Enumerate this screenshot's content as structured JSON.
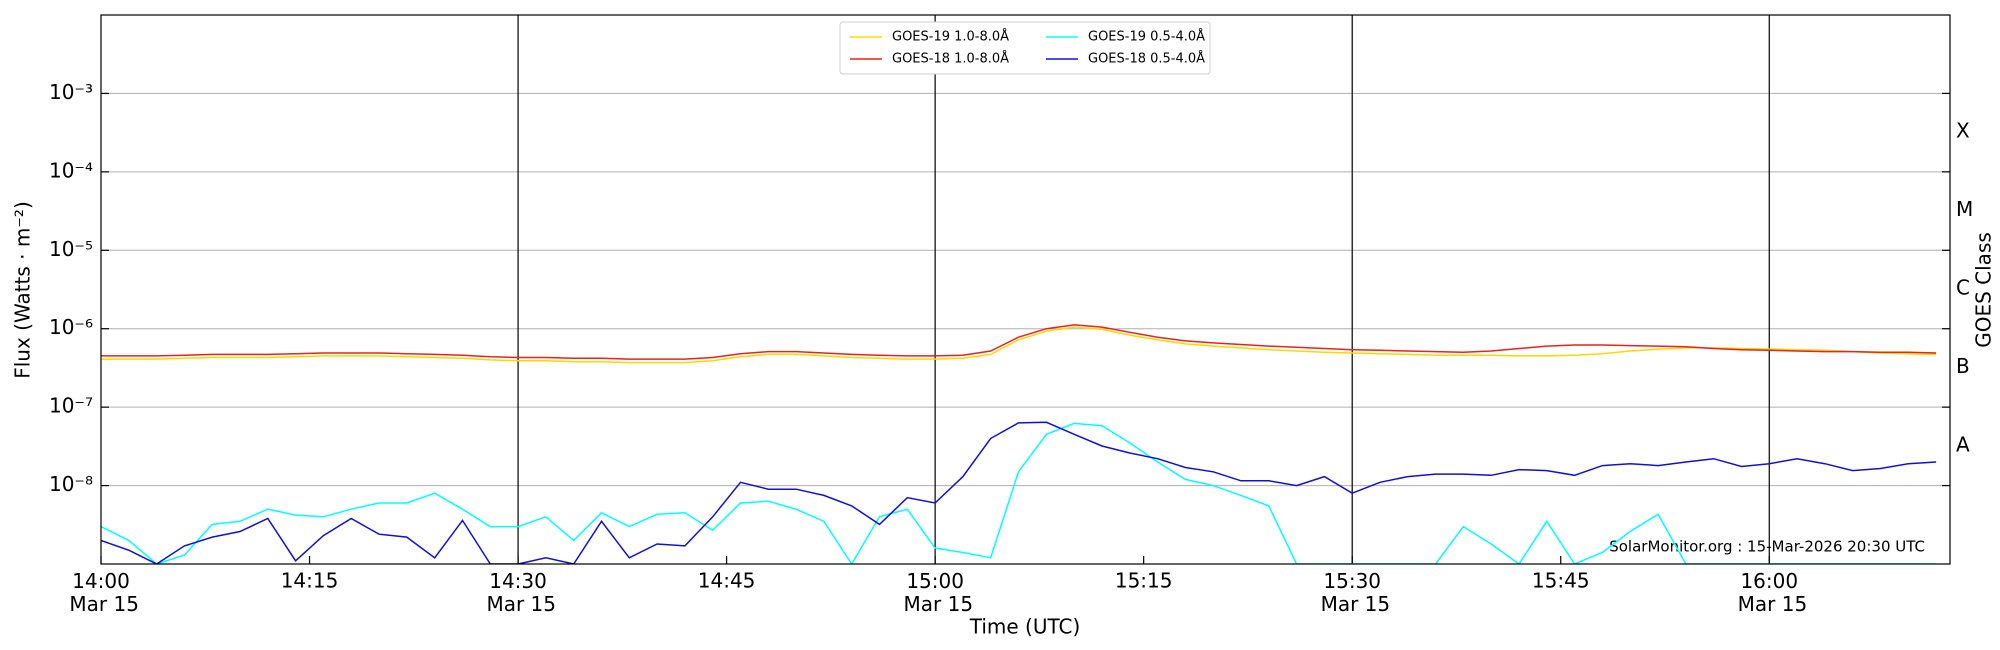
{
  "chart_data": {
    "type": "line",
    "xlabel": "Time (UTC)",
    "ylabel": "Flux (Watts · m⁻²)",
    "y2label": "GOES Class",
    "annotation": "SolarMonitor.org : 15-Mar-2026 20:30 UTC",
    "log_y": true,
    "grid": true,
    "legend": "upper center",
    "legend_columns": 2,
    "xlim": [
      "14:00",
      "16:13"
    ],
    "xticks": [
      {
        "value": "14:00",
        "label": "14:00\nMar 15"
      },
      {
        "value": "14:15",
        "label": "14:15"
      },
      {
        "value": "14:30",
        "label": "14:30\nMar 15"
      },
      {
        "value": "14:45",
        "label": "14:45"
      },
      {
        "value": "15:00",
        "label": "15:00\nMar 15"
      },
      {
        "value": "15:15",
        "label": "15:15"
      },
      {
        "value": "15:30",
        "label": "15:30\nMar 15"
      },
      {
        "value": "15:45",
        "label": "15:45"
      },
      {
        "value": "16:00",
        "label": "16:00\nMar 15"
      }
    ],
    "ylim": [
      1e-09,
      0.01
    ],
    "yticks": [
      {
        "value": 1e-08,
        "label": "10⁻⁸"
      },
      {
        "value": 1e-07,
        "label": "10⁻⁷"
      },
      {
        "value": 1e-06,
        "label": "10⁻⁶"
      },
      {
        "value": 1e-05,
        "label": "10⁻⁵"
      },
      {
        "value": 0.0001,
        "label": "10⁻⁴"
      },
      {
        "value": 0.001,
        "label": "10⁻³"
      }
    ],
    "y2lim": [
      1e-09,
      0.01
    ],
    "y2ticks": [
      {
        "value": 3.2e-08,
        "label": "A"
      },
      {
        "value": 3.2e-07,
        "label": "B"
      },
      {
        "value": 3.2e-06,
        "label": "C"
      },
      {
        "value": 3.2e-05,
        "label": "M"
      },
      {
        "value": 0.00032,
        "label": "X"
      }
    ],
    "x": [
      "14:00",
      "14:02",
      "14:04",
      "14:06",
      "14:08",
      "14:10",
      "14:12",
      "14:14",
      "14:16",
      "14:18",
      "14:20",
      "14:22",
      "14:24",
      "14:26",
      "14:28",
      "14:30",
      "14:32",
      "14:34",
      "14:36",
      "14:38",
      "14:40",
      "14:42",
      "14:44",
      "14:46",
      "14:48",
      "14:50",
      "14:52",
      "14:54",
      "14:56",
      "14:58",
      "15:00",
      "15:02",
      "15:04",
      "15:06",
      "15:08",
      "15:10",
      "15:12",
      "15:14",
      "15:16",
      "15:18",
      "15:20",
      "15:22",
      "15:24",
      "15:26",
      "15:28",
      "15:30",
      "15:32",
      "15:34",
      "15:36",
      "15:38",
      "15:40",
      "15:42",
      "15:44",
      "15:46",
      "15:48",
      "15:50",
      "15:52",
      "15:54",
      "15:56",
      "15:58",
      "16:00",
      "16:02",
      "16:04",
      "16:06",
      "16:08",
      "16:10",
      "16:12"
    ],
    "series": [
      {
        "name": "GOES-19 1.0-8.0Å",
        "color": "#ffd700",
        "values": [
          4.1e-07,
          4.1e-07,
          4.1e-07,
          4.2e-07,
          4.3e-07,
          4.3e-07,
          4.3e-07,
          4.4e-07,
          4.5e-07,
          4.5e-07,
          4.5e-07,
          4.4e-07,
          4.3e-07,
          4.2e-07,
          4e-07,
          3.9e-07,
          3.9e-07,
          3.8e-07,
          3.8e-07,
          3.7e-07,
          3.7e-07,
          3.7e-07,
          3.9e-07,
          4.4e-07,
          4.7e-07,
          4.7e-07,
          4.5e-07,
          4.3e-07,
          4.2e-07,
          4.1e-07,
          4.1e-07,
          4.2e-07,
          4.7e-07,
          7.2e-07,
          9.3e-07,
          1.05e-06,
          9.8e-07,
          8.3e-07,
          7.2e-07,
          6.4e-07,
          6e-07,
          5.7e-07,
          5.4e-07,
          5.2e-07,
          5e-07,
          4.9e-07,
          4.8e-07,
          4.7e-07,
          4.6e-07,
          4.6e-07,
          4.6e-07,
          4.5e-07,
          4.5e-07,
          4.6e-07,
          4.8e-07,
          5.2e-07,
          5.5e-07,
          5.7e-07,
          5.7e-07,
          5.6e-07,
          5.5e-07,
          5.4e-07,
          5.3e-07,
          5.1e-07,
          4.9e-07,
          4.8e-07,
          4.7e-07
        ]
      },
      {
        "name": "GOES-18 1.0-8.0Å",
        "color": "#e8231a",
        "values": [
          4.5e-07,
          4.5e-07,
          4.5e-07,
          4.6e-07,
          4.7e-07,
          4.7e-07,
          4.7e-07,
          4.8e-07,
          4.9e-07,
          4.9e-07,
          4.9e-07,
          4.8e-07,
          4.7e-07,
          4.6e-07,
          4.4e-07,
          4.3e-07,
          4.3e-07,
          4.2e-07,
          4.2e-07,
          4.1e-07,
          4.1e-07,
          4.1e-07,
          4.3e-07,
          4.8e-07,
          5.1e-07,
          5.1e-07,
          4.9e-07,
          4.7e-07,
          4.6e-07,
          4.5e-07,
          4.5e-07,
          4.6e-07,
          5.2e-07,
          7.8e-07,
          1e-06,
          1.12e-06,
          1.05e-06,
          9e-07,
          7.8e-07,
          7e-07,
          6.6e-07,
          6.3e-07,
          6e-07,
          5.8e-07,
          5.6e-07,
          5.4e-07,
          5.3e-07,
          5.2e-07,
          5.1e-07,
          5e-07,
          5.2e-07,
          5.6e-07,
          6e-07,
          6.2e-07,
          6.2e-07,
          6.1e-07,
          6e-07,
          5.9e-07,
          5.6e-07,
          5.4e-07,
          5.3e-07,
          5.2e-07,
          5.1e-07,
          5.1e-07,
          5e-07,
          5e-07,
          4.9e-07
        ]
      },
      {
        "name": "GOES-19 0.5-4.0Å",
        "color": "#00ffff",
        "values": [
          3e-09,
          2e-09,
          1e-09,
          1.3e-09,
          3.2e-09,
          3.5e-09,
          5e-09,
          4.2e-09,
          4e-09,
          5e-09,
          6e-09,
          6e-09,
          8e-09,
          5e-09,
          3e-09,
          3e-09,
          4e-09,
          2e-09,
          4.5e-09,
          3e-09,
          4.3e-09,
          4.5e-09,
          2.7e-09,
          6e-09,
          6.3e-09,
          5e-09,
          3.5e-09,
          1e-09,
          4e-09,
          5e-09,
          1.6e-09,
          1.4e-09,
          1.2e-09,
          1.5e-08,
          4.5e-08,
          6.2e-08,
          5.8e-08,
          3.5e-08,
          2e-08,
          1.2e-08,
          1e-08,
          7.5e-09,
          5.5e-09,
          1e-09,
          1e-09,
          1e-09,
          1e-09,
          1e-09,
          1e-09,
          3e-09,
          1.8e-09,
          1e-09,
          3.5e-09,
          1e-09,
          1.4e-09,
          2.6e-09,
          4.3e-09,
          1e-09,
          1e-09,
          1e-09,
          1e-09,
          1e-09,
          1e-09,
          1e-09,
          1e-09,
          1e-09,
          1e-09
        ]
      },
      {
        "name": "GOES-18 0.5-4.0Å",
        "color": "#1010d8",
        "values": [
          2e-09,
          1.5e-09,
          1e-09,
          1.7e-09,
          2.2e-09,
          2.6e-09,
          3.8e-09,
          1.1e-09,
          2.3e-09,
          3.8e-09,
          2.4e-09,
          2.2e-09,
          1.2e-09,
          3.6e-09,
          1e-09,
          1e-09,
          1.2e-09,
          1e-09,
          3.5e-09,
          1.2e-09,
          1.8e-09,
          1.7e-09,
          4e-09,
          1.1e-08,
          9e-09,
          9e-09,
          7.5e-09,
          5.5e-09,
          3.2e-09,
          7e-09,
          6e-09,
          1.3e-08,
          4e-08,
          6.3e-08,
          6.4e-08,
          4.5e-08,
          3.2e-08,
          2.6e-08,
          2.2e-08,
          1.7e-08,
          1.5e-08,
          1.15e-08,
          1.15e-08,
          1e-08,
          1.3e-08,
          8e-09,
          1.1e-08,
          1.3e-08,
          1.4e-08,
          1.4e-08,
          1.35e-08,
          1.6e-08,
          1.55e-08,
          1.35e-08,
          1.8e-08,
          1.9e-08,
          1.8e-08,
          2e-08,
          2.2e-08,
          1.75e-08,
          1.9e-08,
          2.2e-08,
          1.9e-08,
          1.55e-08,
          1.65e-08,
          1.9e-08,
          2e-08
        ]
      }
    ]
  }
}
